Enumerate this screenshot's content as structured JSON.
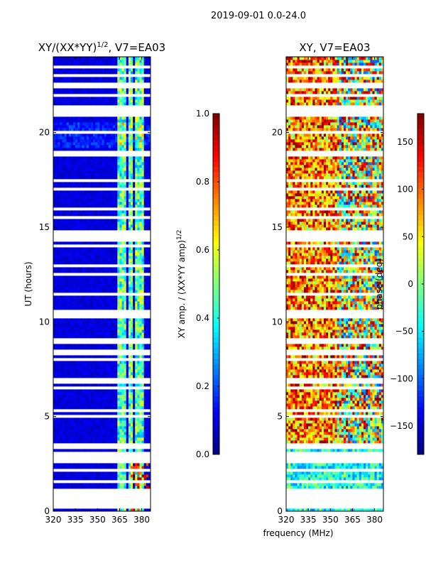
{
  "chart_data": {
    "type": "heatmap",
    "suptitle": "2019-09-01 0.0-24.0",
    "shared_xlabel": "frequency (MHz)",
    "panels": [
      {
        "kind": "amplitude",
        "title_base": "XY/(XX*YY)",
        "title_sup": "1/2",
        "title_suffix": ", V7=EA03",
        "ylabel": "UT (hours)",
        "xlim": [
          320,
          386
        ],
        "ylim": [
          0,
          24
        ],
        "xticks": [
          "320",
          "335",
          "350",
          "365",
          "380"
        ],
        "yticks": [
          "0",
          "5",
          "10",
          "15",
          "20"
        ],
        "xtick_values": [
          320,
          335,
          350,
          365,
          380
        ],
        "ytick_values": [
          0,
          5,
          10,
          15,
          20
        ],
        "colorbar": {
          "label_base": "XY amp. / (XX*YY amp)",
          "label_sup": "1/2",
          "range": [
            0.0,
            1.0
          ],
          "ticks": [
            "0.0",
            "0.2",
            "0.4",
            "0.6",
            "0.8",
            "1.0"
          ],
          "tick_values": [
            0.0,
            0.2,
            0.4,
            0.6,
            0.8,
            1.0
          ],
          "colormap": "jet"
        }
      },
      {
        "kind": "phase",
        "title_base": "XY, V7=EA03",
        "title_sup": "",
        "title_suffix": "",
        "ylabel": "",
        "xlim": [
          320,
          386
        ],
        "ylim": [
          0,
          24
        ],
        "xticks": [
          "320",
          "335",
          "350",
          "365",
          "380"
        ],
        "yticks": [
          "0",
          "5",
          "10",
          "15",
          "20"
        ],
        "xtick_values": [
          320,
          335,
          350,
          365,
          380
        ],
        "ytick_values": [
          0,
          5,
          10,
          15,
          20
        ],
        "colorbar": {
          "label_base": "phase (deg)",
          "label_sup": "",
          "range": [
            -180,
            180
          ],
          "ticks": [
            "−150",
            "−100",
            "−50",
            "0",
            "50",
            "100",
            "150"
          ],
          "tick_values": [
            -150,
            -100,
            -50,
            0,
            50,
            100,
            150
          ],
          "colormap": "jet"
        }
      }
    ],
    "flagged_ut_hours": [
      0.3,
      0.6,
      0.9,
      1.1,
      1.6,
      2.2,
      2.7,
      3.0,
      3.4,
      3.5,
      5.0,
      5.3,
      6.5,
      6.8,
      7.0,
      8.0,
      8.3,
      8.5,
      9.0,
      10.3,
      10.5,
      10.6,
      11.5,
      12.5,
      13.0,
      14.0,
      14.3,
      14.5,
      14.7,
      15.5,
      16.0,
      17.0,
      17.5,
      18.8,
      19.0,
      20.0,
      21.0,
      21.3,
      22.0,
      22.5,
      23.0,
      23.5
    ],
    "bright_channels_mhz": [
      365,
      368,
      372,
      377,
      380
    ]
  }
}
